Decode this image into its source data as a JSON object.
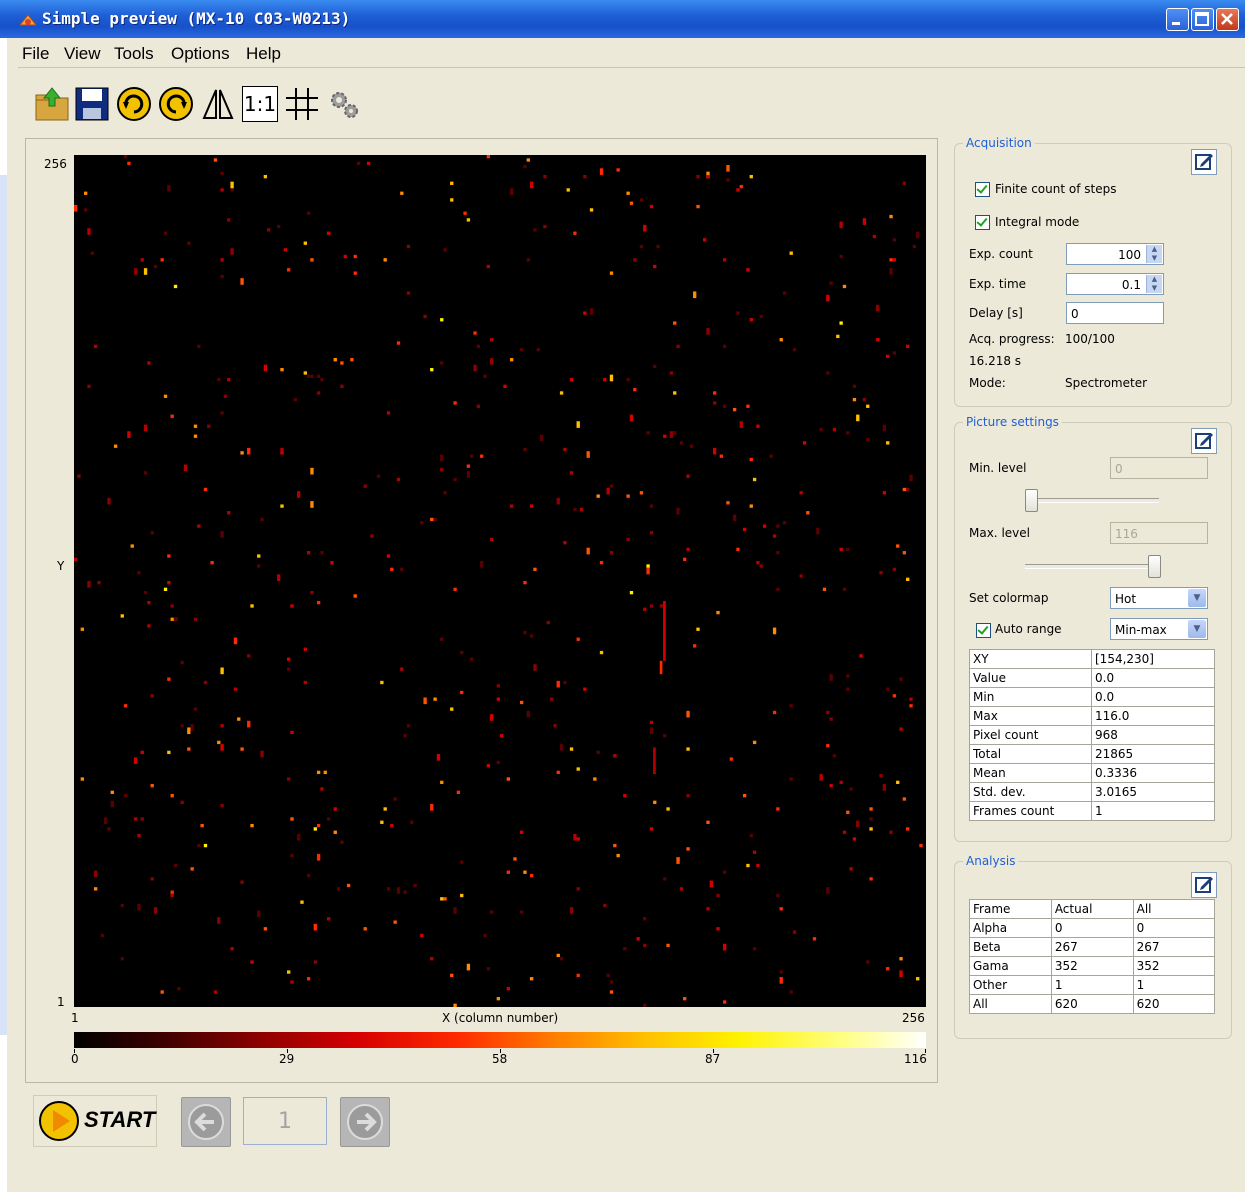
{
  "window": {
    "title": "Simple preview (MX-10 C03-W0213)"
  },
  "menu": [
    "File",
    "View",
    "Tools",
    "Options",
    "Help"
  ],
  "toolbar": {
    "icons": [
      "open-folder-icon",
      "save-icon",
      "rotate-clockwise-icon",
      "rotate-counterclockwise-icon",
      "flip-icon",
      "zoom-1-1-icon",
      "grid-icon",
      "settings-icon"
    ],
    "zoom_label": "1:1"
  },
  "plot": {
    "y_top": "256",
    "y_bottom": "1",
    "y_label": "Y",
    "x_left": "1",
    "x_right": "256",
    "x_label": "X (column number)",
    "colorbar_ticks": [
      "0",
      "29",
      "58",
      "87",
      "116"
    ]
  },
  "acquisition": {
    "legend": "Acquisition",
    "finite_steps_label": "Finite count of steps",
    "finite_steps_checked": true,
    "integral_mode_label": "Integral mode",
    "integral_mode_checked": true,
    "exp_count_label": "Exp. count",
    "exp_count_value": "100",
    "exp_time_label": "Exp. time",
    "exp_time_value": "0.1",
    "delay_label": "Delay [s]",
    "delay_value": "0",
    "progress_label": "Acq. progress:",
    "progress_value": "100/100",
    "elapsed": "16.218 s",
    "mode_label": "Mode:",
    "mode_value": "Spectrometer"
  },
  "picture": {
    "legend": "Picture settings",
    "min_level_label": "Min. level",
    "min_level_value": "0",
    "min_level_fraction": 0.0,
    "max_level_label": "Max. level",
    "max_level_value": "116",
    "max_level_fraction": 1.0,
    "colormap_label": "Set colormap",
    "colormap_value": "Hot",
    "auto_range_label": "Auto range",
    "auto_range_checked": true,
    "range_mode_value": "Min-max",
    "stats": [
      {
        "key": "XY",
        "value": "[154,230]"
      },
      {
        "key": "Value",
        "value": "0.0"
      },
      {
        "key": "Min",
        "value": "0.0"
      },
      {
        "key": "Max",
        "value": "116.0"
      },
      {
        "key": "Pixel count",
        "value": "968"
      },
      {
        "key": "Total",
        "value": "21865"
      },
      {
        "key": "Mean",
        "value": "0.3336"
      },
      {
        "key": "Std. dev.",
        "value": "3.0165"
      },
      {
        "key": "Frames count",
        "value": "1"
      }
    ]
  },
  "analysis": {
    "legend": "Analysis",
    "header": [
      "Frame",
      "Actual",
      "All"
    ],
    "rows": [
      [
        "Alpha",
        "0",
        "0"
      ],
      [
        "Beta",
        "267",
        "267"
      ],
      [
        "Gama",
        "352",
        "352"
      ],
      [
        "Other",
        "1",
        "1"
      ],
      [
        "All",
        "620",
        "620"
      ]
    ]
  },
  "controls": {
    "start_label": "START",
    "frame_number": "1"
  },
  "colors": {
    "titlebar": "#1f5fd6",
    "legend_text": "#1f5fd6",
    "panel_bg": "#ece9d8",
    "heatmap_bg": "#000000"
  }
}
